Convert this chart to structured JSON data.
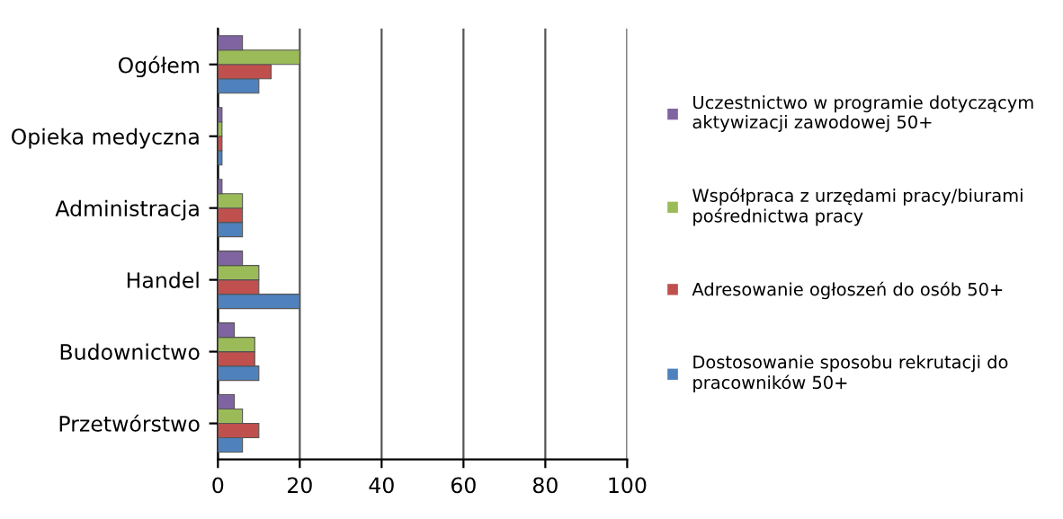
{
  "chart_data": {
    "type": "bar",
    "orientation": "horizontal",
    "categories": [
      "Ogółem",
      "Opieka medyczna",
      "Administracja",
      "Handel",
      "Budownictwo",
      "Przetwórstwo"
    ],
    "series": [
      {
        "name": "Dostosowanie sposobu rekrutacji do pracowników 50+",
        "color": "#4f81bd",
        "values": [
          10,
          1,
          6,
          20,
          10,
          6
        ]
      },
      {
        "name": "Adresowanie ogłoszeń do osób 50+",
        "color": "#c0504d",
        "values": [
          13,
          1,
          6,
          10,
          9,
          10
        ]
      },
      {
        "name": "Współpraca z urzędami pracy/biurami pośrednictwa pracy",
        "color": "#9bbb59",
        "values": [
          20,
          1,
          6,
          10,
          9,
          6
        ]
      },
      {
        "name": "Uczestnictwo w programie dotyczącym aktywizacji zawodowej 50+",
        "color": "#8064a2",
        "values": [
          6,
          1,
          1,
          6,
          4,
          4
        ]
      }
    ],
    "xlim": [
      0,
      100
    ],
    "xticks": [
      0,
      20,
      40,
      60,
      80,
      100
    ],
    "grid": "x",
    "legend": "right"
  }
}
